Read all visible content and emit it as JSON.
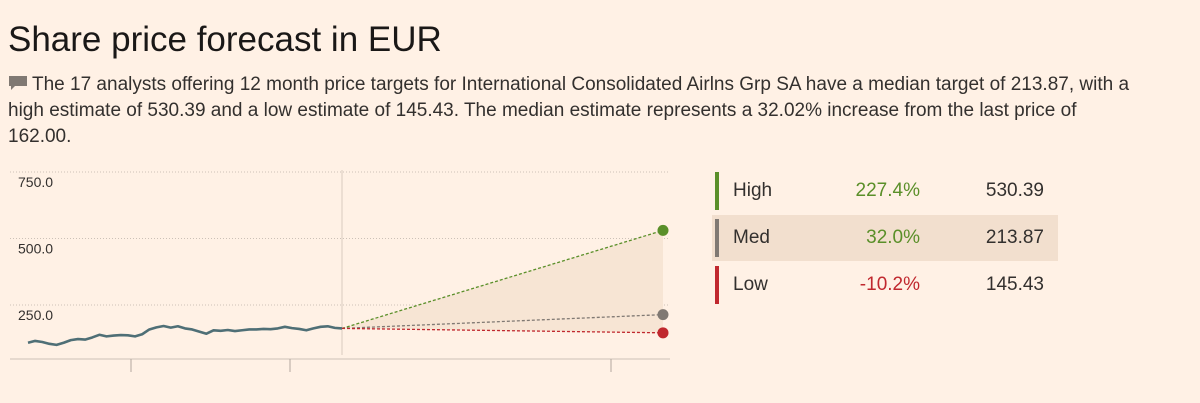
{
  "title": "Share price forecast in EUR",
  "summary": "The 17 analysts offering 12 month price targets for International Consolidated Airlns Grp SA have a median target of 213.87, with a high estimate of 530.39 and a low estimate of 145.43. The median estimate represents a 32.02% increase from the last price of 162.00.",
  "icons": {
    "summary": "comment-icon"
  },
  "colors": {
    "background": "#fff1e5",
    "price_line": "#4f6f76",
    "high": "#5a8f29",
    "median": "#807973",
    "low": "#c0282e",
    "range_fill": "#f7e5d4",
    "grid": "#ccc1b7"
  },
  "legend": [
    {
      "label": "High",
      "change": "227.4%",
      "value": "530.39",
      "color": "#5a8f29",
      "change_color": "#5a8f29",
      "highlight": false
    },
    {
      "label": "Med",
      "change": "32.0%",
      "value": "213.87",
      "color": "#807973",
      "change_color": "#5a8f29",
      "highlight": true
    },
    {
      "label": "Low",
      "change": "-10.2%",
      "value": "145.43",
      "color": "#c0282e",
      "change_color": "#c0282e",
      "highlight": false
    }
  ],
  "chart_data": {
    "type": "line",
    "yticks": [
      "750.0",
      "500.0",
      "250.0"
    ],
    "ylim": [
      0,
      750
    ],
    "grid": true,
    "series": [
      {
        "values": [
          108,
          115,
          111,
          104,
          100,
          108,
          118,
          122,
          120,
          128,
          138,
          132,
          135,
          137,
          136,
          132,
          140,
          158,
          166,
          171,
          165,
          170,
          162,
          158,
          150,
          142,
          155,
          153,
          156,
          152,
          155,
          158,
          158,
          160,
          159,
          162,
          168,
          163,
          160,
          155,
          162,
          168,
          170,
          164,
          162
        ]
      }
    ],
    "forecast": {
      "last_price": 162.0,
      "high": 530.39,
      "median": 213.87,
      "low": 145.43
    }
  }
}
